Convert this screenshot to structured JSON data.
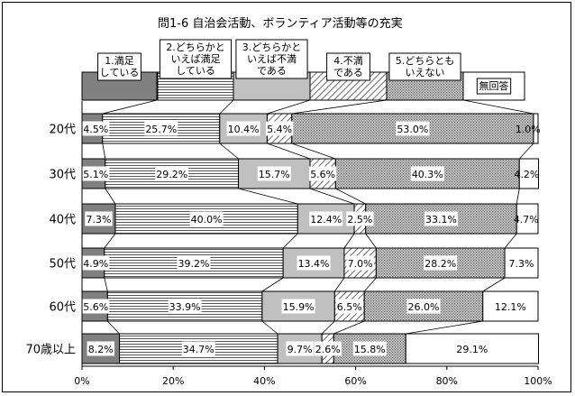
{
  "chart_data": {
    "type": "bar",
    "stacked": true,
    "orientation": "horizontal",
    "normalized_to_percent": true,
    "title": "問1-6  自治会活動、ボランティア活動等の充実",
    "categories": [
      "20代",
      "30代",
      "40代",
      "50代",
      "60代",
      "70歳以上"
    ],
    "x_ticks": [
      "0%",
      "20%",
      "40%",
      "60%",
      "80%",
      "100%"
    ],
    "xlim": [
      0,
      100
    ],
    "grid": false,
    "legend_position": "top",
    "series": [
      {
        "name": "1.満足している",
        "legend_lines": [
          "1.満足",
          "している"
        ],
        "color": "#7f7f7f",
        "pattern": "solid-dark",
        "values": [
          4.5,
          5.1,
          7.3,
          4.9,
          5.6,
          8.2
        ],
        "labels": [
          "4.5%",
          "5.1%",
          "7.3%",
          "4.9%",
          "5.6%",
          "8.2%"
        ]
      },
      {
        "name": "2.どちらかといえば満足している",
        "legend_lines": [
          "2.どちらかと",
          "いえば満足",
          "している"
        ],
        "color": "#ffffff",
        "pattern": "horizontal-lines",
        "values": [
          25.7,
          29.2,
          40.0,
          39.2,
          33.9,
          34.7
        ],
        "labels": [
          "25.7%",
          "29.2%",
          "40.0%",
          "39.2%",
          "33.9%",
          "34.7%"
        ]
      },
      {
        "name": "3.どちらかといえば不満である",
        "legend_lines": [
          "3.どちらかと",
          "いえば不満",
          "である"
        ],
        "color": "#c0c0c0",
        "pattern": "solid-light",
        "values": [
          10.4,
          15.7,
          12.4,
          13.4,
          15.9,
          9.7
        ],
        "labels": [
          "10.4%",
          "15.7%",
          "12.4%",
          "13.4%",
          "15.9%",
          "9.7%"
        ]
      },
      {
        "name": "4.不満である",
        "legend_lines": [
          "4.不満",
          "である"
        ],
        "color": "#ffffff",
        "pattern": "diagonal-lines",
        "values": [
          5.4,
          5.6,
          2.5,
          7.0,
          6.5,
          2.6
        ],
        "labels": [
          "5.4%",
          "5.6%",
          "2.5%",
          "7.0%",
          "6.5%",
          "2.6%"
        ]
      },
      {
        "name": "5.どちらともいえない",
        "legend_lines": [
          "5.どちらとも",
          "いえない"
        ],
        "color": "#a0a0a0",
        "pattern": "dots",
        "values": [
          53.0,
          40.3,
          33.1,
          28.2,
          26.0,
          15.8
        ],
        "labels": [
          "53.0%",
          "40.3%",
          "33.1%",
          "28.2%",
          "26.0%",
          "15.8%"
        ]
      },
      {
        "name": "無回答",
        "legend_lines": [
          "無回答"
        ],
        "color": "#ffffff",
        "pattern": "none",
        "values": [
          1.0,
          4.2,
          4.7,
          7.3,
          12.1,
          29.1
        ],
        "labels": [
          "1.0%",
          "4.2%",
          "4.7%",
          "7.3%",
          "12.1%",
          "29.1%"
        ]
      }
    ]
  }
}
